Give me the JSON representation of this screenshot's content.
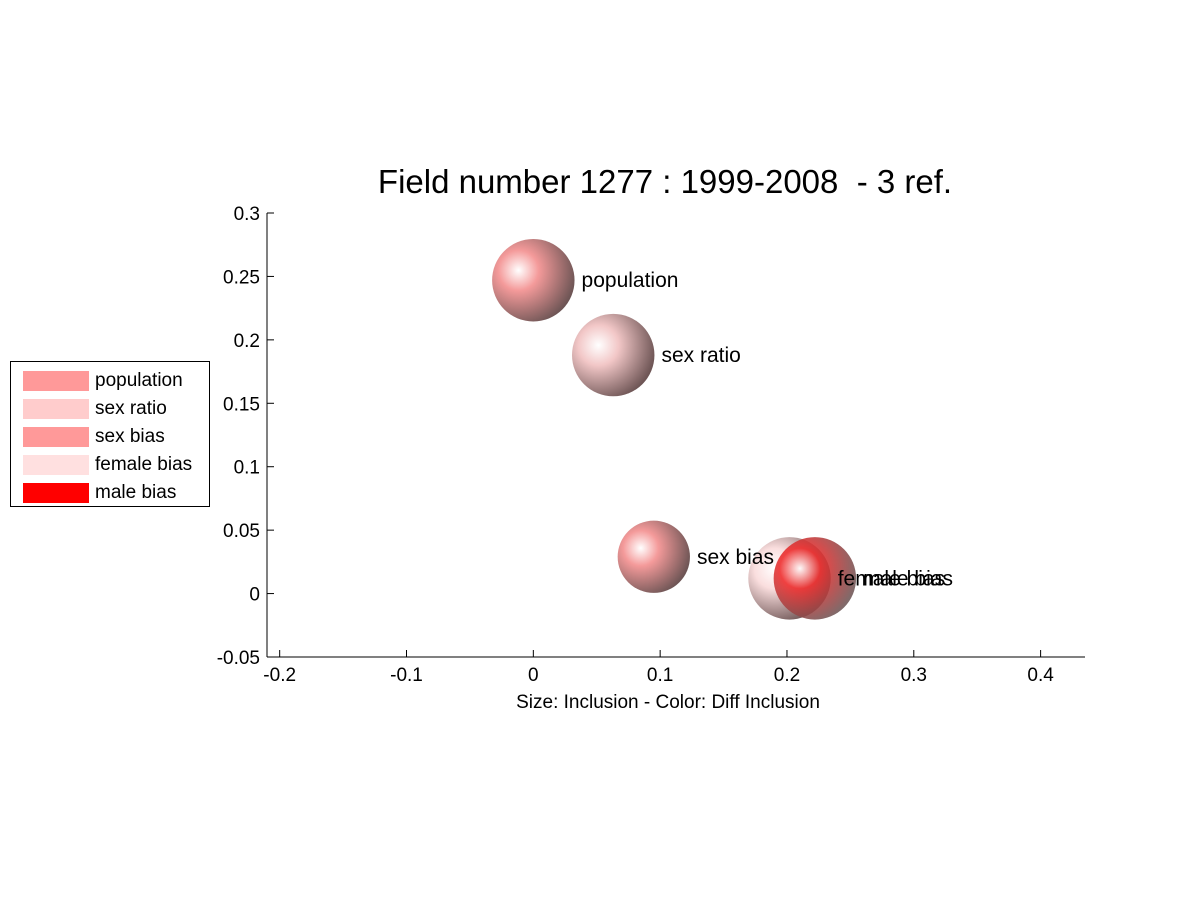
{
  "title": "Field number 1277 : 1999-2008  - 3 ref.",
  "chart_data": {
    "type": "scatter",
    "title": "Field number 1277 : 1999-2008  - 3 ref.",
    "xlabel": "Size: Inclusion - Color: Diff Inclusion",
    "ylabel": "",
    "xlim": [
      -0.21,
      0.435
    ],
    "ylim": [
      -0.05,
      0.3
    ],
    "x_ticks": [
      "-0.2",
      "-0.1",
      "0",
      "0.1",
      "0.2",
      "0.3",
      "0.4"
    ],
    "y_ticks": [
      "-0.05",
      "0",
      "0.05",
      "0.1",
      "0.15",
      "0.2",
      "0.25",
      "0.3"
    ],
    "grid": false,
    "legend_position": "left",
    "points": [
      {
        "label": "population",
        "x": 0.0,
        "y": 0.247,
        "size": 0.065,
        "color": "#f49a9a"
      },
      {
        "label": "sex ratio",
        "x": 0.063,
        "y": 0.188,
        "size": 0.065,
        "color": "#f2c7c7"
      },
      {
        "label": "sex bias",
        "x": 0.095,
        "y": 0.029,
        "size": 0.057,
        "color": "#f49a9a"
      },
      {
        "label": "female bias",
        "x": 0.202,
        "y": 0.012,
        "size": 0.065,
        "color": "#fadede"
      },
      {
        "label": "male bias",
        "x": 0.222,
        "y": 0.012,
        "size": 0.065,
        "color": "#ee2a2a"
      }
    ]
  },
  "legend": {
    "items": [
      {
        "label": "population",
        "color": "#ff9999"
      },
      {
        "label": "sex ratio",
        "color": "#ffcccc"
      },
      {
        "label": "sex bias",
        "color": "#ff9999"
      },
      {
        "label": "female bias",
        "color": "#ffe0e0"
      },
      {
        "label": "male bias",
        "color": "#ff0000"
      }
    ]
  }
}
